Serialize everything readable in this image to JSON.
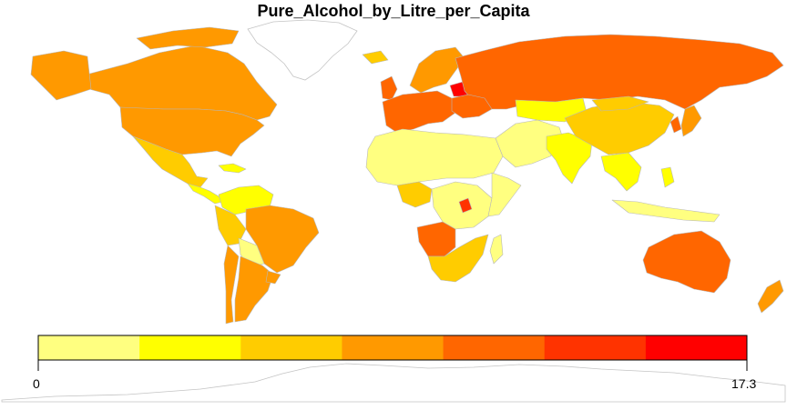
{
  "title": "Pure_Alcohol_by_Litre_per_Capita",
  "legend": {
    "min_label": "0",
    "max_label": "17.3",
    "colors": [
      "#FFFF80",
      "#FFFF00",
      "#FFCC00",
      "#FF9900",
      "#FF6600",
      "#FF3300",
      "#FF0000"
    ]
  },
  "colors": {
    "border": "#b8b8b8",
    "antarctica_outline": "#c4c4c4"
  }
}
